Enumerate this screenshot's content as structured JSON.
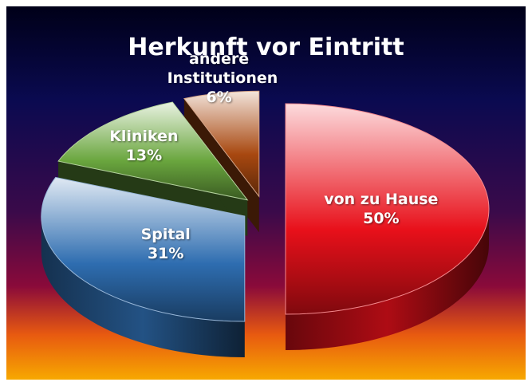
{
  "chart_data": {
    "type": "pie",
    "title": "Herkunft vor Eintritt",
    "categories": [
      "von zu Hause",
      "Spital",
      "Kliniken",
      "andere Institutionen"
    ],
    "values": [
      50,
      31,
      13,
      6
    ],
    "value_labels": [
      "50%",
      "31%",
      "13%",
      "6%"
    ],
    "colors": [
      "#e8101a",
      "#2e6db0",
      "#6aa63e",
      "#a84810"
    ]
  }
}
